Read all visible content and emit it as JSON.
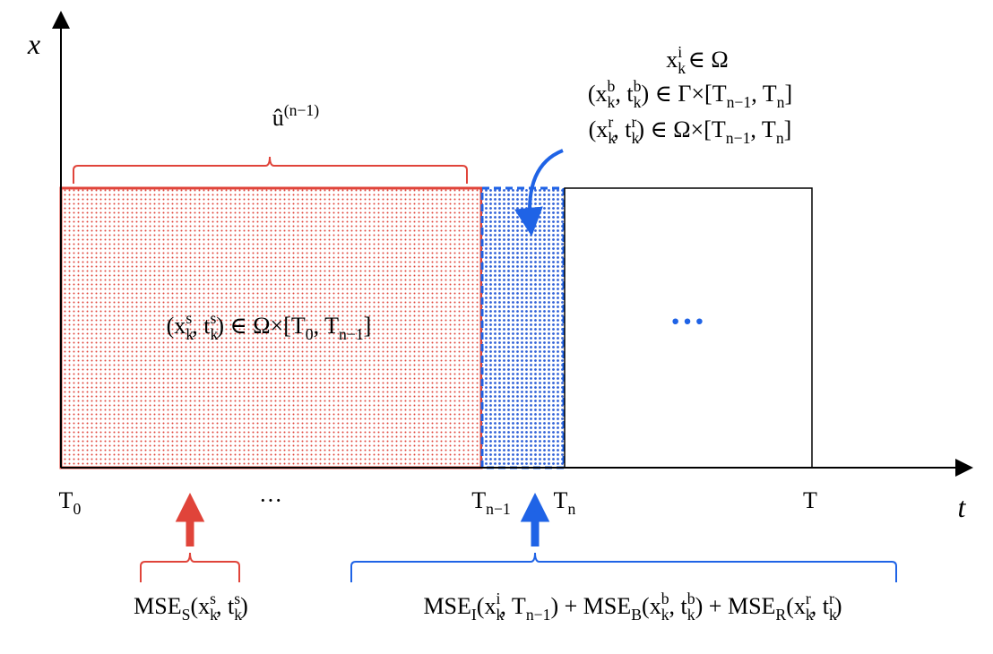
{
  "axes": {
    "y_label": "x",
    "x_label": "t"
  },
  "labels": {
    "u_hat": [
      {
        "b": "û",
        "sup": "(n−1)"
      }
    ],
    "initial": [
      {
        "b": "x",
        "sub": "k",
        "sup": "i"
      },
      {
        "b": " ∈ Ω"
      }
    ],
    "boundary": [
      {
        "b": "(x",
        "sub": "k",
        "sup": "b"
      },
      {
        "b": ", t",
        "sub": "k",
        "sup": "b"
      },
      {
        "b": ") ∈ Γ×[T",
        "sub": "n−1"
      },
      {
        "b": ", T",
        "sub": "n"
      },
      {
        "b": "]"
      }
    ],
    "residual": [
      {
        "b": "(x",
        "sub": "k",
        "sup": "r"
      },
      {
        "b": ", t",
        "sub": "k",
        "sup": "r"
      },
      {
        "b": ") ∈ Ω×[T",
        "sub": "n−1"
      },
      {
        "b": ", T",
        "sub": "n"
      },
      {
        "b": "]"
      }
    ],
    "solution": [
      {
        "b": "(x",
        "sub": "k",
        "sup": "s"
      },
      {
        "b": ", t",
        "sub": "k",
        "sup": "s"
      },
      {
        "b": ") ∈ Ω×[T",
        "sub": "0"
      },
      {
        "b": ", T",
        "sub": "n−1"
      },
      {
        "b": "]"
      }
    ],
    "future": [
      {
        "b": "···"
      }
    ],
    "loss_s": [
      {
        "b": "MSE",
        "sub": "S"
      },
      {
        "b": "(x",
        "sub": "k",
        "sup": "s"
      },
      {
        "b": ", t",
        "sub": "k",
        "sup": "s"
      },
      {
        "b": ")"
      }
    ],
    "loss_n": [
      {
        "b": "MSE",
        "sub": "I"
      },
      {
        "b": "(x",
        "sub": "k",
        "sup": "i"
      },
      {
        "b": ", T",
        "sub": "n−1"
      },
      {
        "b": ") + MSE",
        "sub": "B"
      },
      {
        "b": "(x",
        "sub": "k",
        "sup": "b"
      },
      {
        "b": ", t",
        "sub": "k",
        "sup": "b"
      },
      {
        "b": ") + MSE",
        "sub": "R"
      },
      {
        "b": "(x",
        "sub": "k",
        "sup": "r"
      },
      {
        "b": ", t",
        "sub": "k",
        "sup": "r"
      },
      {
        "b": ")"
      }
    ]
  },
  "ticks": [
    [
      {
        "b": "T",
        "sub": "0"
      }
    ],
    [
      {
        "b": "···"
      }
    ],
    [
      {
        "b": "T",
        "sub": "n−1"
      }
    ],
    [
      {
        "b": "T",
        "sub": "n"
      }
    ],
    [
      {
        "b": "T"
      }
    ]
  ]
}
